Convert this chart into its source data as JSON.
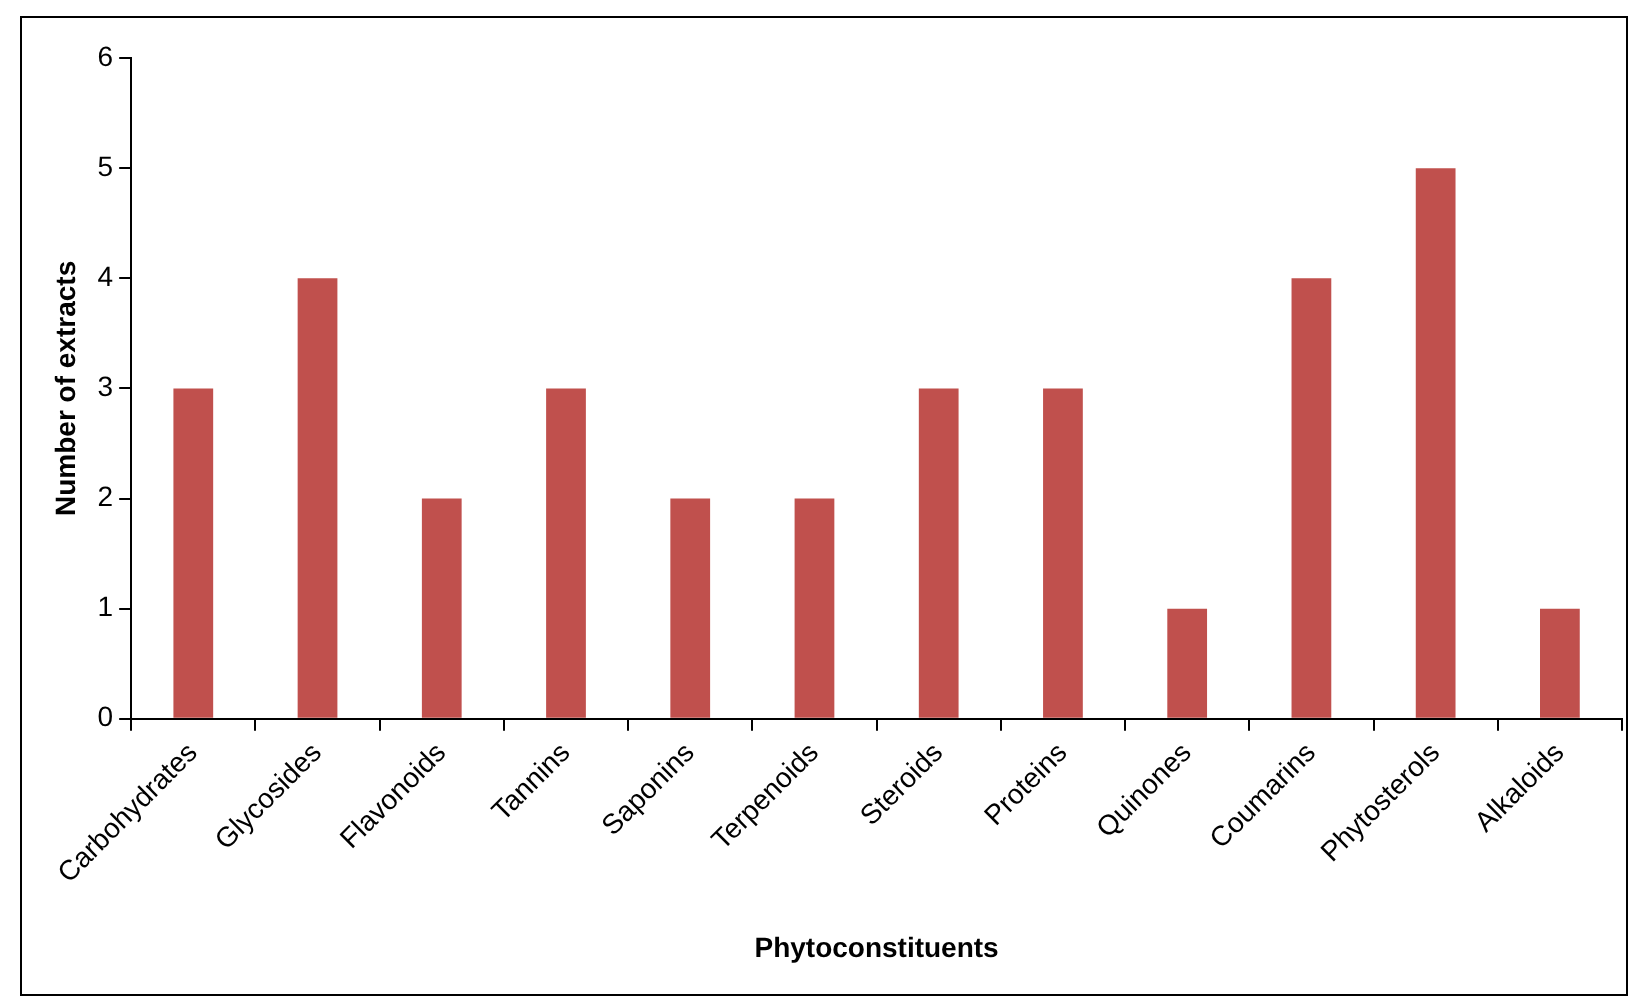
{
  "chart_data": {
    "type": "bar",
    "xlabel": "Phytoconstituents",
    "ylabel": "Number of extracts",
    "categories": [
      "Carbohydrates",
      "Glycosides",
      "Flavonoids",
      "Tannins",
      "Saponins",
      "Terpenoids",
      "Steroids",
      "Proteins",
      "Quinones",
      "Coumarins",
      "Phytosterols",
      "Alkaloids"
    ],
    "values": [
      3,
      4,
      2,
      3,
      2,
      2,
      3,
      3,
      1,
      4,
      5,
      1
    ],
    "color": "#c0504d",
    "ylim": [
      0,
      6
    ],
    "yticks": [
      0,
      1,
      2,
      3,
      4,
      5,
      6
    ],
    "grid": false,
    "legend": false
  }
}
